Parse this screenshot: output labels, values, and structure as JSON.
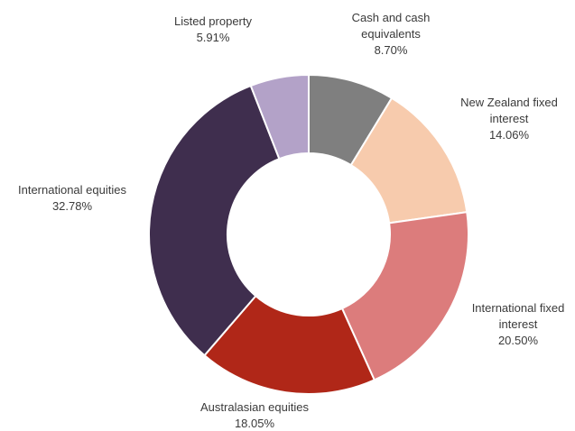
{
  "chart_data": {
    "type": "pie",
    "donut": true,
    "slices": [
      {
        "label_lines": [
          "Cash and cash",
          "equivalents"
        ],
        "value": 8.7,
        "value_label": "8.70%",
        "color": "#7f7f7f"
      },
      {
        "label_lines": [
          "New Zealand fixed",
          "interest"
        ],
        "value": 14.06,
        "value_label": "14.06%",
        "color": "#f7cbad"
      },
      {
        "label_lines": [
          "International fixed",
          "interest"
        ],
        "value": 20.5,
        "value_label": "20.50%",
        "color": "#dc7c7c"
      },
      {
        "label_lines": [
          "Australasian equities"
        ],
        "value": 18.05,
        "value_label": "18.05%",
        "color": "#b02718"
      },
      {
        "label_lines": [
          "International equities"
        ],
        "value": 32.78,
        "value_label": "32.78%",
        "color": "#3f2e4e"
      },
      {
        "label_lines": [
          "Listed property"
        ],
        "value": 5.91,
        "value_label": "5.91%",
        "color": "#b3a2c8"
      }
    ]
  }
}
